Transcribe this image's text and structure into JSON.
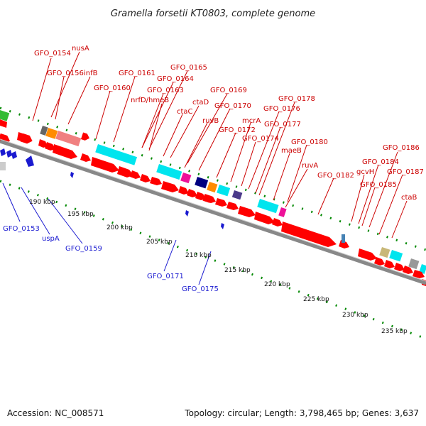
{
  "title": "Gramella forsetii KT0803, complete genome",
  "footer": {
    "accession": "Accession: NC_008571",
    "summary": "Topology: circular; Length: 3,798,465 bp; Genes: 3,637"
  },
  "kbp_ticks": [
    "190 kbp",
    "195 kbp",
    "200 kbp",
    "205 kbp",
    "210 kbp",
    "215 kbp",
    "220 kbp",
    "225 kbp",
    "230 kbp",
    "235 kbp"
  ],
  "forward_labels": [
    "GFO_0154",
    "nusA",
    "GFO_0156",
    "infB",
    "GFO_0161",
    "GFO_0165",
    "GFO_0164",
    "GFO_0160",
    "GFO_0163",
    "nrfD/hmeB",
    "ctaD",
    "ctaC",
    "GFO_0169",
    "GFO_0170",
    "ruvB",
    "GFO_0178",
    "GFO_0176",
    "mcrA",
    "GFO_0172",
    "GFO_0177",
    "GFO_0174",
    "GFO_0180",
    "maeB",
    "ruvA",
    "GFO_0182",
    "GFO_0186",
    "GFO_0184",
    "gcvH",
    "GFO_0187",
    "GFO_0185",
    "ctaB"
  ],
  "reverse_labels": [
    "GFO_0153",
    "uspA",
    "GFO_0159",
    "GFO_0171",
    "GFO_0175"
  ],
  "colors": {
    "forward": "#cc0000",
    "reverse": "#1a1ad0",
    "cds": "#ff0000",
    "backbone": "#888888",
    "tick": "#008800"
  }
}
